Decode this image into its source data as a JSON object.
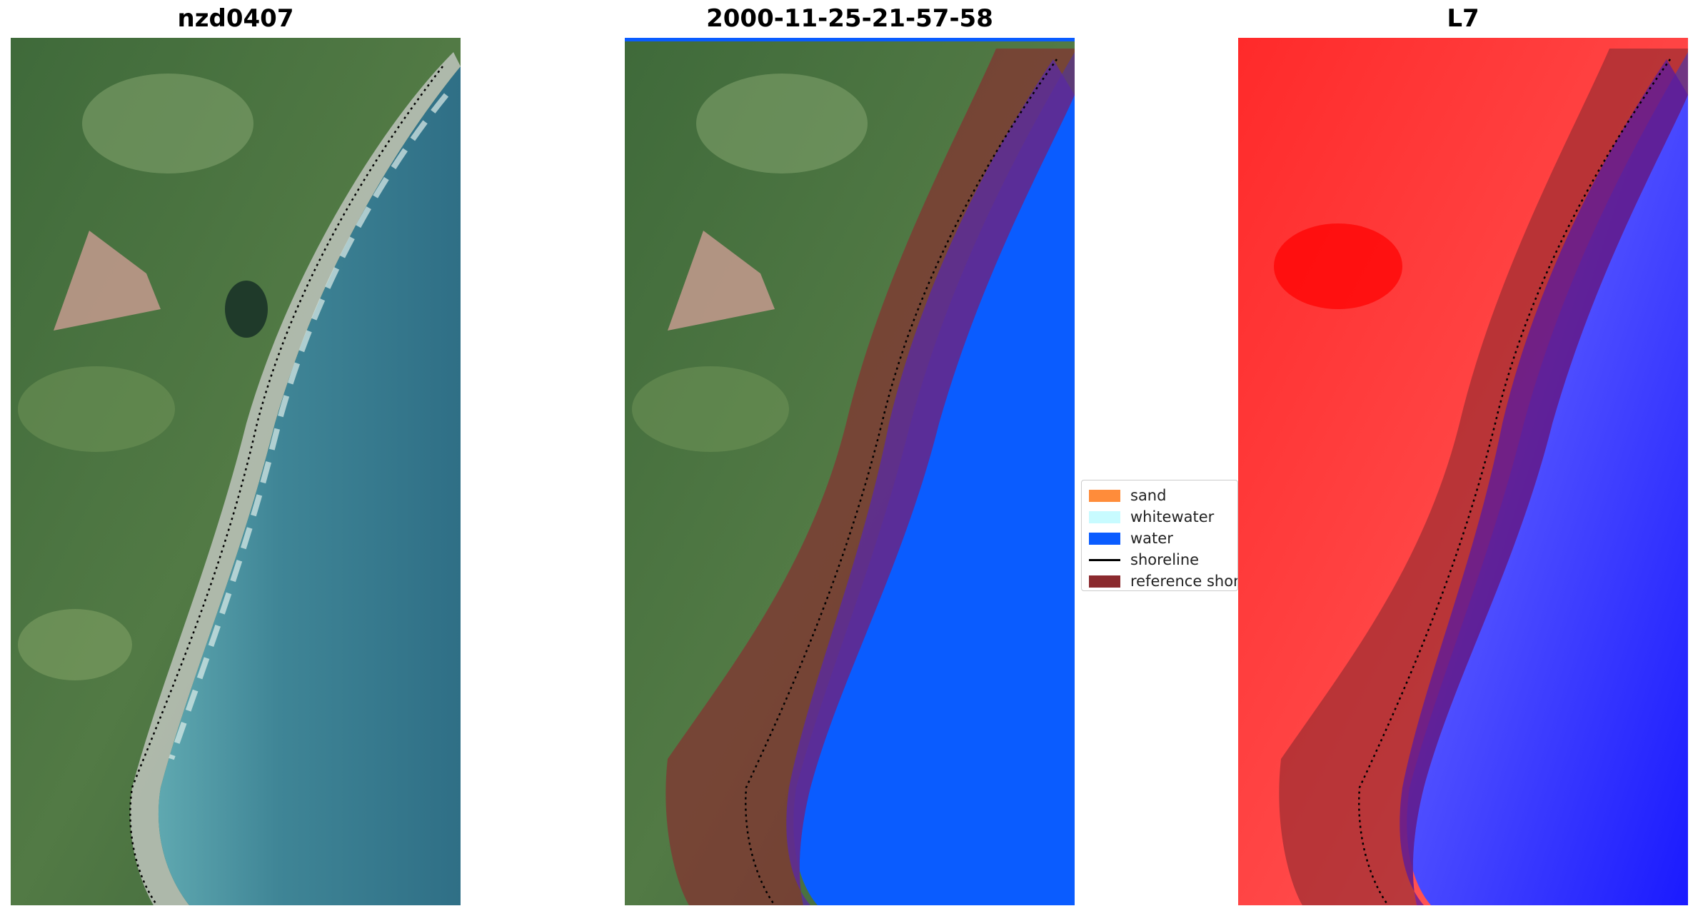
{
  "panels": [
    {
      "title": "nzd0407"
    },
    {
      "title": "2000-11-25-21-57-58"
    },
    {
      "title": "L7"
    }
  ],
  "legend": {
    "items": [
      {
        "label": "sand",
        "color": "#ff8c3a",
        "kind": "patch"
      },
      {
        "label": "whitewater",
        "color": "#c8fbff",
        "kind": "patch"
      },
      {
        "label": "water",
        "color": "#0a5cff",
        "kind": "patch"
      },
      {
        "label": "shoreline",
        "color": "#000000",
        "kind": "line"
      },
      {
        "label": "reference shoreline buffer",
        "color": "#8b2a2e",
        "kind": "patch"
      }
    ]
  },
  "colors": {
    "water_class": "#0a5cff",
    "buffer_overlay": "#8b2a2e",
    "land_index": "#ff1a1a",
    "water_index": "#1a1aff"
  }
}
